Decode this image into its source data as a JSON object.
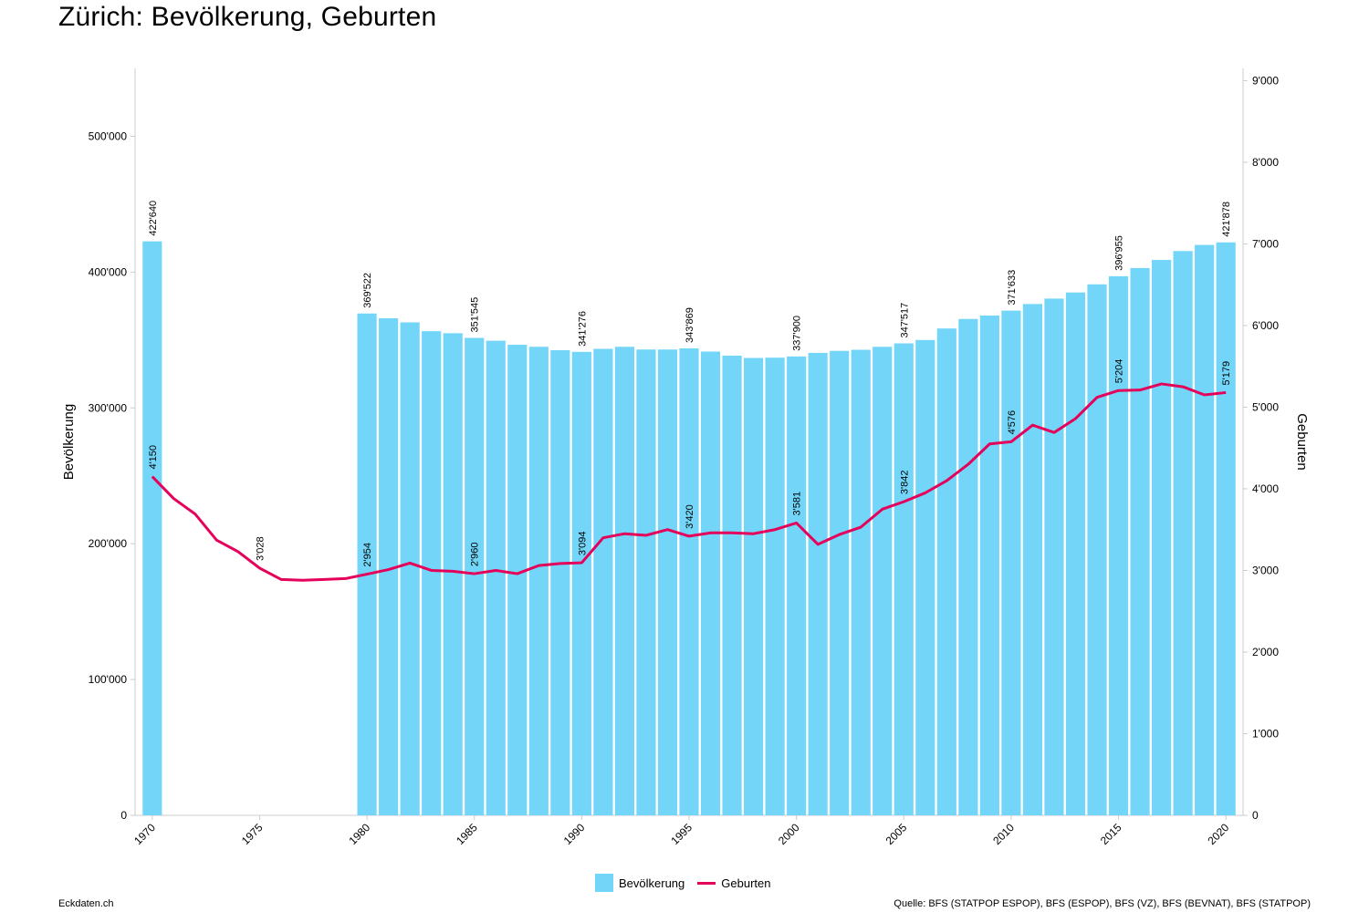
{
  "title": "Zürich: Bevölkerung, Geburten",
  "footer": {
    "site": "Eckdaten.ch",
    "source": "Quelle: BFS (STATPOP ESPOP), BFS (ESPOP), BFS (VZ), BFS (BEVNAT), BFS (STATPOP)"
  },
  "legend": {
    "bar": "Bevölkerung",
    "line": "Geburten"
  },
  "colors": {
    "bar": "#73d6f9",
    "line": "#e5005a",
    "axis": "#cccccc"
  },
  "chart_data": {
    "type": "bar",
    "title": "Zürich: Bevölkerung, Geburten",
    "ylabel_left": "Bevölkerung",
    "ylabel_right": "Geburten",
    "ylim_left": [
      0,
      550000
    ],
    "ylim_right": [
      0,
      9150
    ],
    "yticks_left": [
      0,
      100000,
      200000,
      300000,
      400000,
      500000
    ],
    "yticks_left_labels": [
      "0",
      "100'000",
      "200'000",
      "300'000",
      "400'000",
      "500'000"
    ],
    "yticks_right": [
      0,
      1000,
      2000,
      3000,
      4000,
      5000,
      6000,
      7000,
      8000,
      9000
    ],
    "yticks_right_labels": [
      "0",
      "1'000",
      "2'000",
      "3'000",
      "4'000",
      "5'000",
      "6'000",
      "7'000",
      "8'000",
      "9'000"
    ],
    "xticks": [
      1970,
      1975,
      1980,
      1985,
      1990,
      1995,
      2000,
      2005,
      2010,
      2015,
      2020
    ],
    "xlim": [
      1969.2,
      2020.8
    ],
    "legend_position": "bottom-center",
    "series": [
      {
        "name": "Bevölkerung",
        "type": "bar",
        "axis": "left",
        "x": [
          1970,
          1980,
          1981,
          1982,
          1983,
          1984,
          1985,
          1986,
          1987,
          1988,
          1989,
          1990,
          1991,
          1992,
          1993,
          1994,
          1995,
          1996,
          1997,
          1998,
          1999,
          2000,
          2001,
          2002,
          2003,
          2004,
          2005,
          2006,
          2007,
          2008,
          2009,
          2010,
          2011,
          2012,
          2013,
          2014,
          2015,
          2016,
          2017,
          2018,
          2019,
          2020
        ],
        "values": [
          422640,
          369522,
          366000,
          363000,
          356500,
          355000,
          351545,
          349500,
          346500,
          345000,
          342500,
          341276,
          343500,
          345000,
          343000,
          343000,
          343869,
          341500,
          338500,
          336800,
          337000,
          337900,
          340500,
          342000,
          342800,
          345000,
          347517,
          350000,
          358500,
          365500,
          368000,
          371633,
          376500,
          380500,
          385000,
          391000,
          396955,
          403000,
          409000,
          415500,
          420000,
          421878
        ],
        "labels": {
          "1970": "422'640",
          "1980": "369'522",
          "1985": "351'545",
          "1990": "341'276",
          "1995": "343'869",
          "2000": "337'900",
          "2005": "347'517",
          "2010": "371'633",
          "2015": "396'955",
          "2020": "421'878"
        }
      },
      {
        "name": "Geburten",
        "type": "line",
        "axis": "right",
        "x": [
          1970,
          1971,
          1972,
          1973,
          1974,
          1975,
          1976,
          1977,
          1978,
          1979,
          1980,
          1981,
          1982,
          1983,
          1984,
          1985,
          1986,
          1987,
          1988,
          1989,
          1990,
          1991,
          1992,
          1993,
          1994,
          1995,
          1996,
          1997,
          1998,
          1999,
          2000,
          2001,
          2002,
          2003,
          2004,
          2005,
          2006,
          2007,
          2008,
          2009,
          2010,
          2011,
          2012,
          2013,
          2014,
          2015,
          2016,
          2017,
          2018,
          2019,
          2020
        ],
        "values": [
          4150,
          3880,
          3690,
          3370,
          3230,
          3028,
          2890,
          2880,
          2890,
          2900,
          2954,
          3010,
          3090,
          3000,
          2990,
          2960,
          3000,
          2960,
          3060,
          3085,
          3094,
          3400,
          3450,
          3430,
          3500,
          3420,
          3460,
          3460,
          3450,
          3500,
          3581,
          3320,
          3440,
          3530,
          3750,
          3842,
          3950,
          4100,
          4300,
          4550,
          4576,
          4780,
          4690,
          4860,
          5120,
          5204,
          5210,
          5285,
          5250,
          5150,
          5179
        ],
        "labels": {
          "1970": "4'150",
          "1975": "3'028",
          "1980": "2'954",
          "1985": "2'960",
          "1990": "3'094",
          "1995": "3'420",
          "2000": "3'581",
          "2005": "3'842",
          "2010": "4'576",
          "2015": "5'204",
          "2020": "5'179"
        }
      }
    ]
  }
}
